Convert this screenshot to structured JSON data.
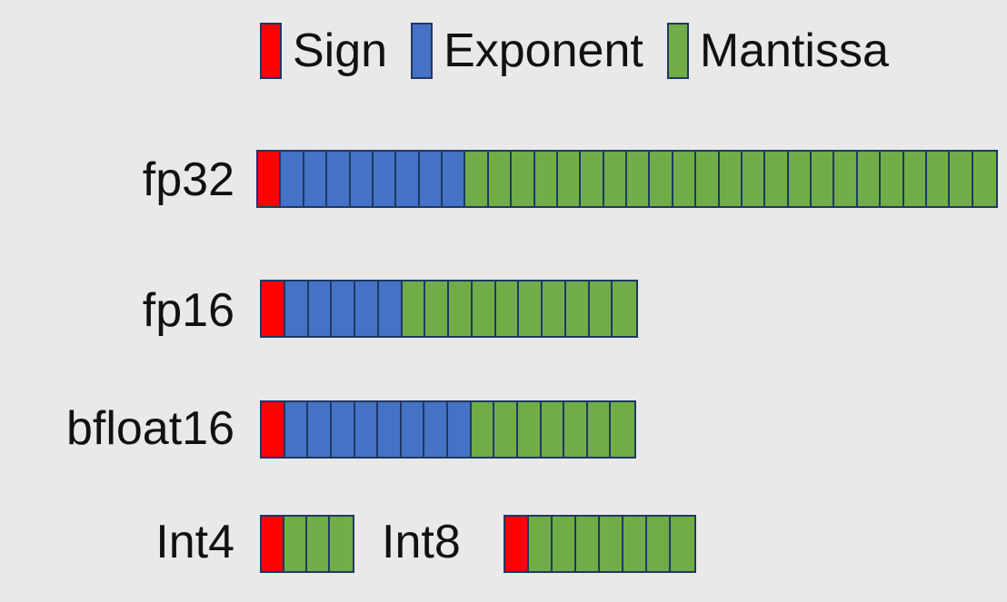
{
  "colors": {
    "sign": "#ff0000",
    "exponent": "#4472c4",
    "mantissa": "#70ad47",
    "border": "#1f3864"
  },
  "legend": [
    {
      "key": "sign",
      "label": "Sign"
    },
    {
      "key": "exponent",
      "label": "Exponent"
    },
    {
      "key": "mantissa",
      "label": "Mantissa"
    }
  ],
  "formats": [
    {
      "id": "fp32",
      "label": "fp32",
      "sign": 1,
      "exponent": 8,
      "mantissa": 23
    },
    {
      "id": "fp16",
      "label": "fp16",
      "sign": 1,
      "exponent": 5,
      "mantissa": 10
    },
    {
      "id": "bfloat16",
      "label": "bfloat16",
      "sign": 1,
      "exponent": 8,
      "mantissa": 7
    },
    {
      "id": "int4",
      "label": "Int4",
      "sign": 1,
      "exponent": 0,
      "mantissa": 3
    },
    {
      "id": "int8",
      "label": "Int8",
      "sign": 1,
      "exponent": 0,
      "mantissa": 7
    }
  ]
}
